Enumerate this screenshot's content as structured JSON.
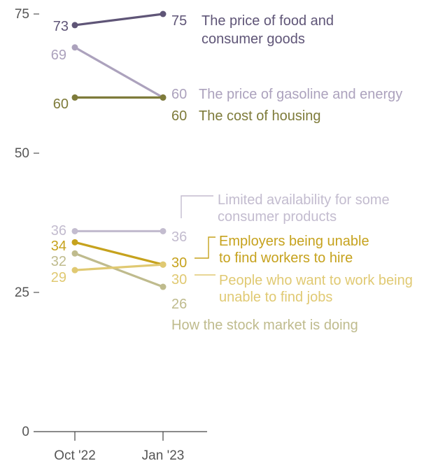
{
  "chart_data": {
    "type": "line",
    "x": [
      "Oct '22",
      "Jan '23"
    ],
    "ylim": [
      0,
      75
    ],
    "yticks": [
      0,
      25,
      50,
      75
    ],
    "grid": false,
    "series": [
      {
        "key": "food",
        "label_lines": [
          "The price of food and",
          "consumer goods"
        ],
        "values": [
          73,
          75
        ],
        "color": "#5f5577"
      },
      {
        "key": "gas",
        "label_lines": [
          "The price of gasoline and energy"
        ],
        "values": [
          69,
          60
        ],
        "color": "#aca2bd"
      },
      {
        "key": "housing",
        "label_lines": [
          "The cost of housing"
        ],
        "values": [
          60,
          60
        ],
        "color": "#7e7b3a"
      },
      {
        "key": "supply",
        "label_lines": [
          "Limited availability for some",
          "consumer products"
        ],
        "values": [
          36,
          36
        ],
        "color": "#c3bccf"
      },
      {
        "key": "employers",
        "label_lines": [
          "Employers being unable",
          "to find workers to hire"
        ],
        "values": [
          34,
          30
        ],
        "color": "#c6a21d"
      },
      {
        "key": "stock",
        "label_lines": [
          "How the stock market is doing"
        ],
        "values": [
          32,
          26
        ],
        "color": "#bfbb8d"
      },
      {
        "key": "jobs",
        "label_lines": [
          "People who want to work being",
          "unable to find jobs"
        ],
        "values": [
          29,
          30
        ],
        "color": "#e0c972"
      }
    ]
  }
}
